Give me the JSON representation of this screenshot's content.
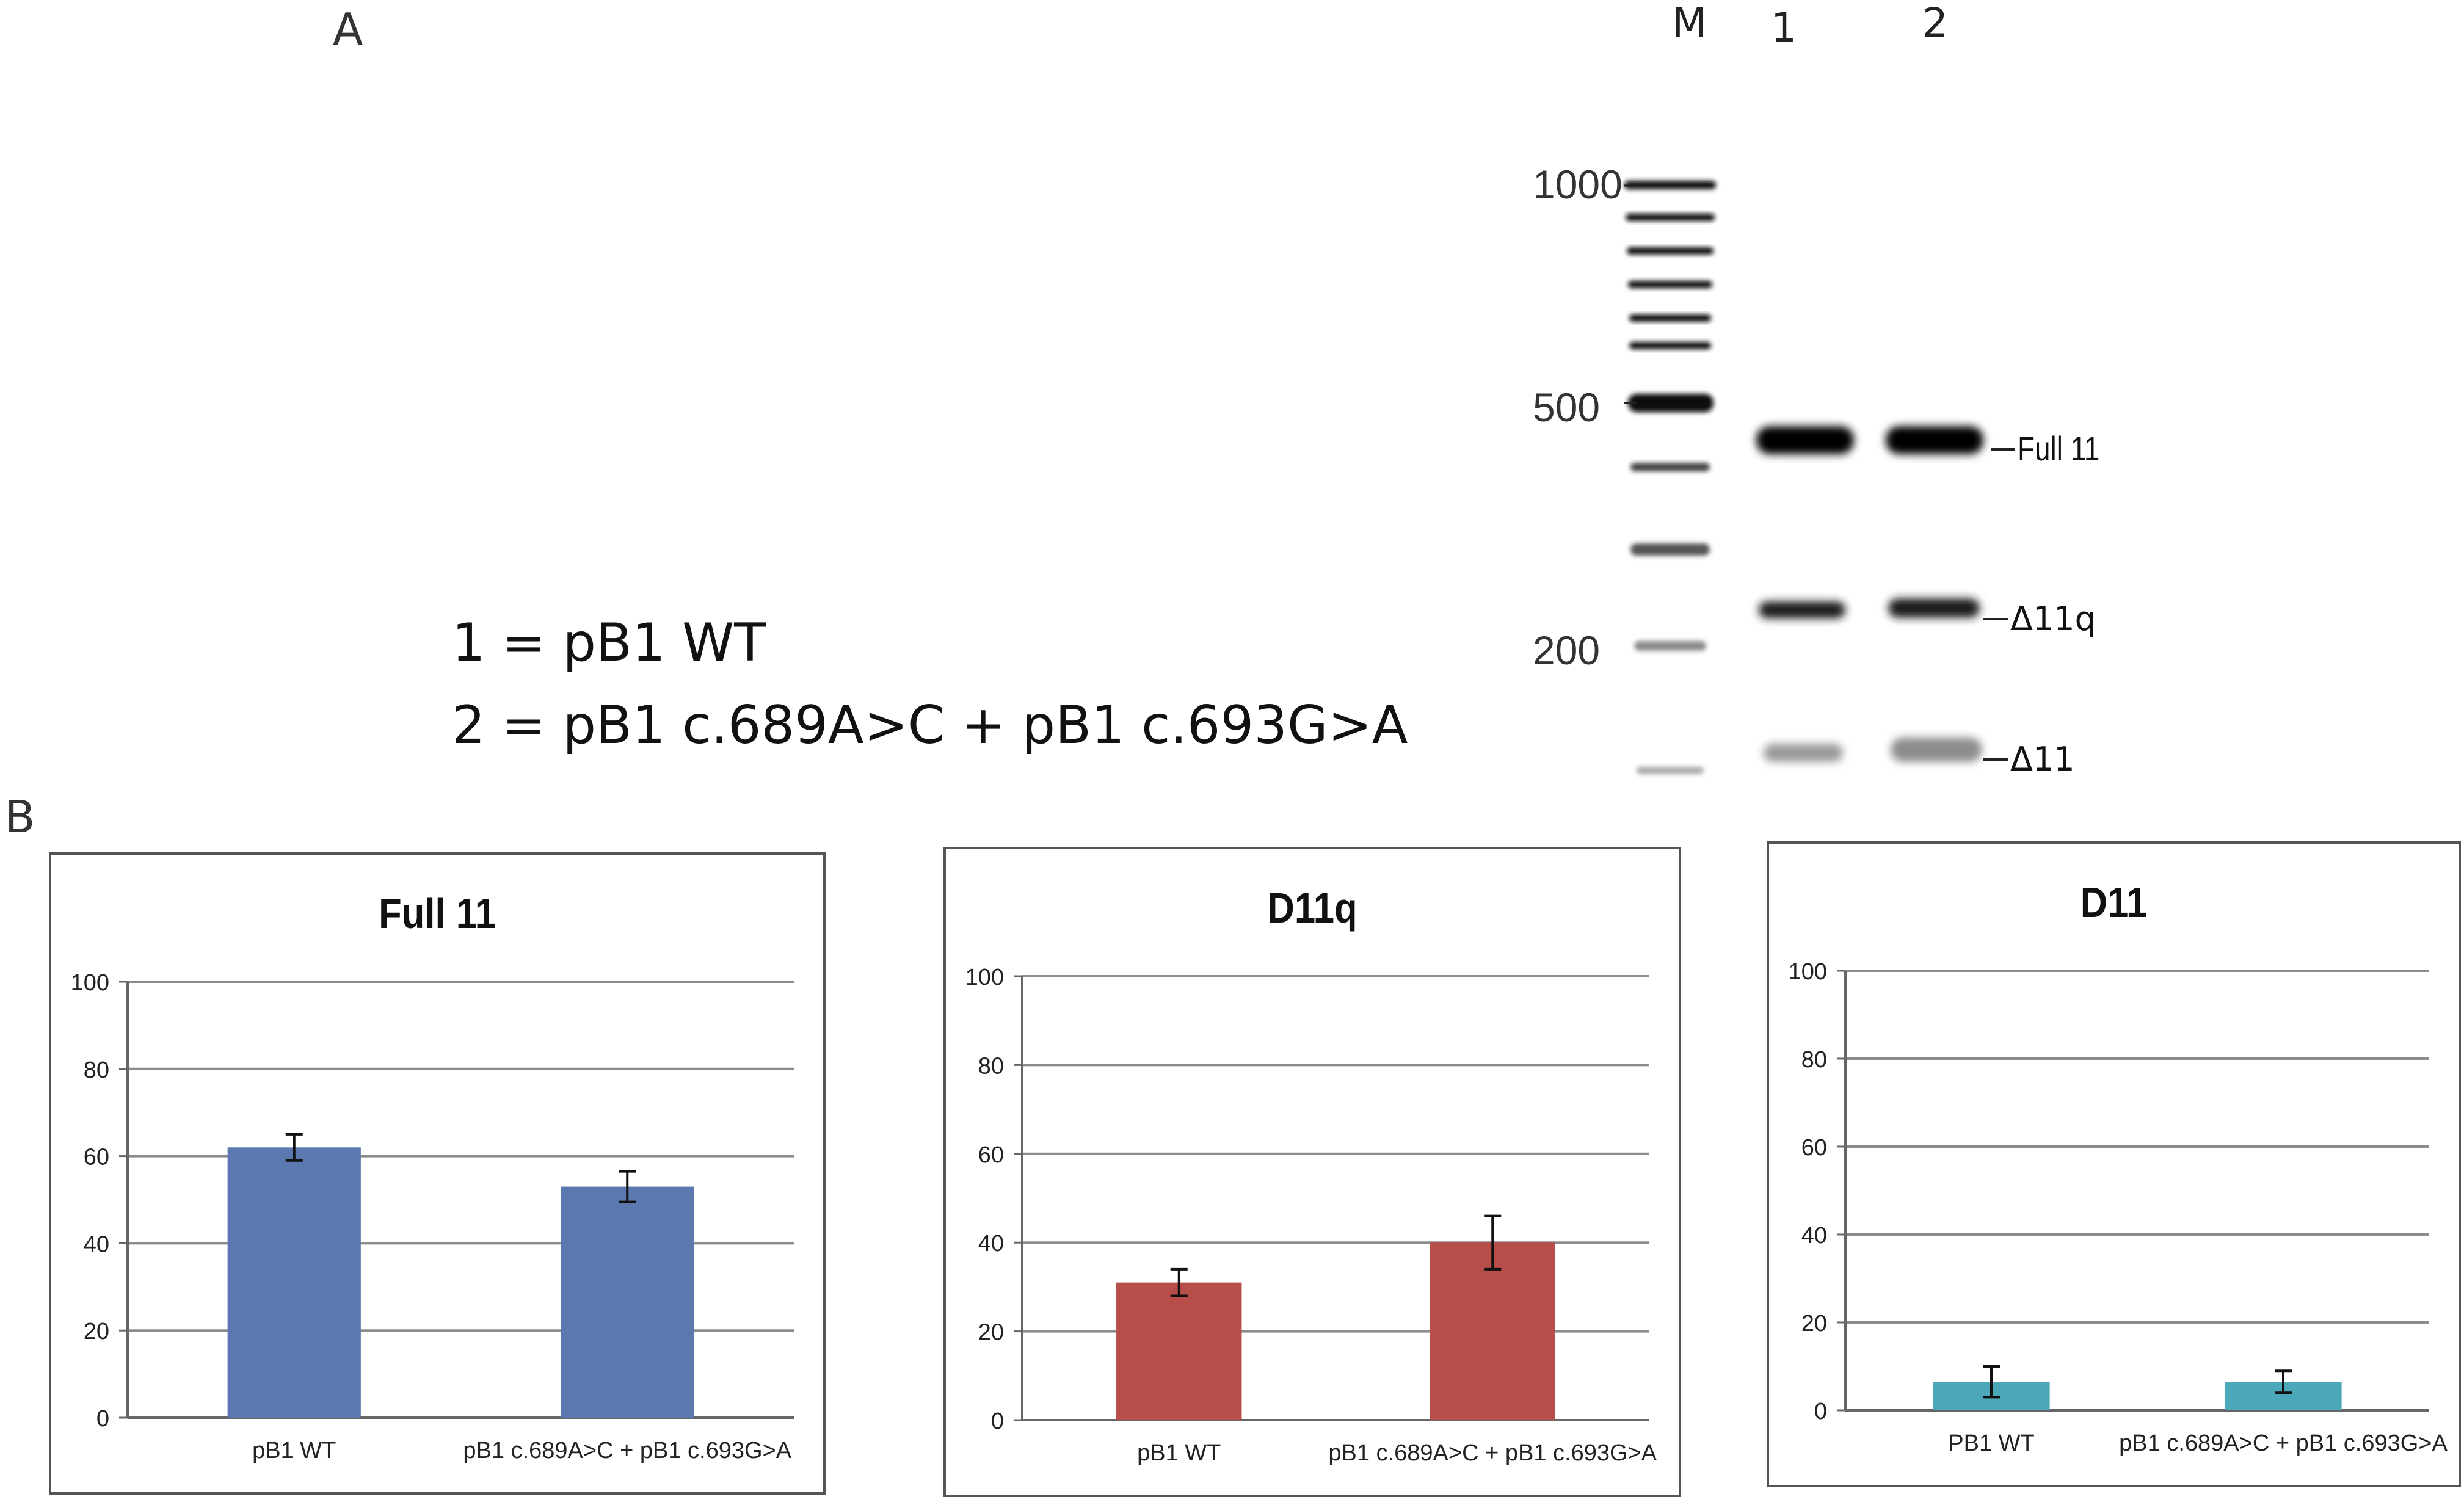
{
  "panels": {
    "a_label": "A",
    "b_label": "B"
  },
  "lane_legend": {
    "line1": "1 = pB1 WT",
    "line2": "2 = pB1 c.689A>C + pB1 c.693G>A"
  },
  "gel": {
    "lane_labels": [
      "M",
      "1",
      "2"
    ],
    "marker_labels": [
      "1000",
      "500",
      "200"
    ],
    "band_labels": [
      "Full 11",
      "Δ11q",
      "Δ11"
    ]
  },
  "colors": {
    "full11": "#5b79b0",
    "d11q": "#b74e4a",
    "d11": "#4aa8b8",
    "grid": "#8c8c8c",
    "frame": "#555555"
  },
  "chart_data": [
    {
      "type": "bar",
      "title": "Full 11",
      "categories": [
        "pB1 WT",
        "pB1 c.689A>C + pB1 c.693G>A"
      ],
      "values": [
        62,
        53
      ],
      "errors": [
        3,
        3.5
      ],
      "ylim": [
        0,
        100
      ],
      "yticks": [
        "0",
        "20",
        "40",
        "60",
        "80",
        "100"
      ],
      "grid": true,
      "color": "#5b79b0"
    },
    {
      "type": "bar",
      "title": "D11q",
      "categories": [
        "pB1 WT",
        "pB1 c.689A>C + pB1 c.693G>A"
      ],
      "values": [
        31,
        40
      ],
      "errors": [
        3,
        6
      ],
      "ylim": [
        0,
        100
      ],
      "yticks": [
        "0",
        "20",
        "40",
        "60",
        "80",
        "100"
      ],
      "grid": true,
      "color": "#b74e4a"
    },
    {
      "type": "bar",
      "title": "D11",
      "categories": [
        "PB1 WT",
        "pB1 c.689A>C + pB1 c.693G>A"
      ],
      "values": [
        6.5,
        6.5
      ],
      "errors": [
        3.5,
        2.5
      ],
      "ylim": [
        0,
        100
      ],
      "yticks": [
        "0",
        "20",
        "40",
        "60",
        "80",
        "100"
      ],
      "grid": true,
      "color": "#4aa8b8"
    }
  ]
}
